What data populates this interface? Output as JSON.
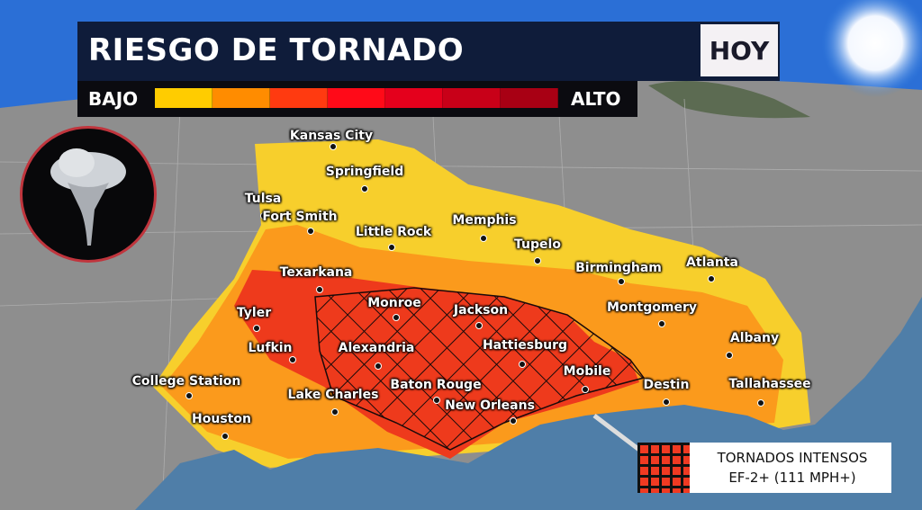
{
  "header": {
    "title": "RIESGO DE TORNADO",
    "day": "HOY"
  },
  "scale": {
    "low_label": "BAJO",
    "high_label": "ALTO",
    "colors": [
      "#ffcc00",
      "#ff8c00",
      "#ff3a10",
      "#ff0a18",
      "#e4001c",
      "#c80018",
      "#a80014"
    ]
  },
  "risk_colors": {
    "marginal": "#f7cf2c",
    "slight": "#fb9a1c",
    "enhanced": "#ee3a1c",
    "hatch": "#1a0a0a",
    "water": "#4f7ea8",
    "land": "#8d8d8d"
  },
  "icon": "tornado-icon",
  "cities": [
    "Kansas City",
    "Springfield",
    "Tulsa",
    "Fort Smith",
    "Little Rock",
    "Memphis",
    "Tupelo",
    "Birmingham",
    "Atlanta",
    "Texarkana",
    "Tyler",
    "Monroe",
    "Jackson",
    "Montgomery",
    "Albany",
    "Lufkin",
    "Alexandria",
    "Hattiesburg",
    "Mobile",
    "Destin",
    "Tallahassee",
    "College Station",
    "Lake Charles",
    "Baton Rouge",
    "New Orleans",
    "Houston"
  ],
  "legend": {
    "line1": "TORNADOS INTENSOS",
    "line2": "EF-2+ (111 MPH+)"
  }
}
